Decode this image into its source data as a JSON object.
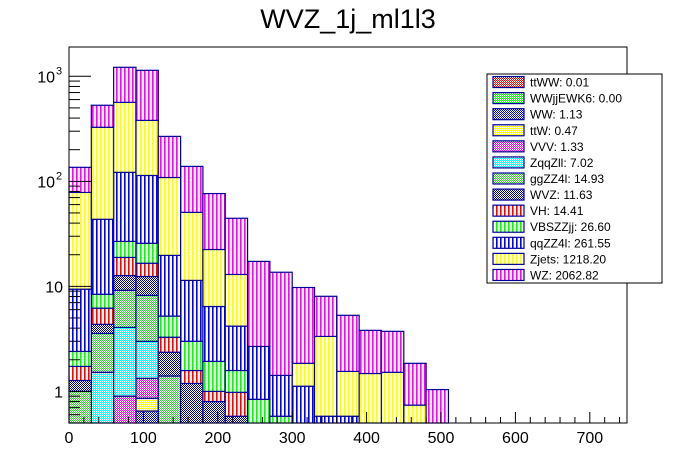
{
  "chart_data": {
    "type": "bar",
    "subtype": "stacked-histogram",
    "title": "WVZ_1j_ml1l3",
    "xlabel": "",
    "ylabel": "",
    "yscale": "log",
    "xlim": [
      0,
      750
    ],
    "ylim": [
      0.5,
      1900
    ],
    "bin_edges": [
      0,
      30,
      60,
      90,
      120,
      150,
      180,
      210,
      240,
      270,
      300,
      330,
      360,
      390,
      420,
      450,
      480,
      510
    ],
    "x_ticks": [
      "0",
      "100",
      "200",
      "300",
      "400",
      "500",
      "600",
      "700"
    ],
    "x_tick_values": [
      0,
      100,
      200,
      300,
      400,
      500,
      600,
      700
    ],
    "y_ticks": [
      {
        "value": 1,
        "label": "1",
        "sup": ""
      },
      {
        "value": 10,
        "label": "10",
        "sup": ""
      },
      {
        "value": 100,
        "label": "10",
        "sup": "2"
      },
      {
        "value": 1000,
        "label": "10",
        "sup": "3"
      }
    ],
    "legend_position": "top-right",
    "series": [
      {
        "name": "ttWW",
        "legend": "ttWW: 0.01",
        "color": "#ff0000",
        "pattern": "dots",
        "values": [
          0,
          0,
          0,
          0,
          0,
          0,
          0,
          0,
          0,
          0,
          0,
          0,
          0,
          0,
          0,
          0,
          0
        ]
      },
      {
        "name": "WWjjEWK6",
        "legend": "WWjjEWK6: 0.00",
        "color": "#00ff00",
        "pattern": "dots",
        "values": [
          0,
          0,
          0,
          0,
          0,
          0,
          0,
          0,
          0,
          0,
          0,
          0,
          0,
          0,
          0,
          0,
          0
        ]
      },
      {
        "name": "WW",
        "legend": "WW: 1.13",
        "color": "#0000ff",
        "pattern": "dots",
        "values": [
          0,
          0,
          0,
          0.65,
          0.05,
          0,
          0,
          0,
          0,
          0,
          0,
          0,
          0,
          0,
          0,
          0,
          0
        ]
      },
      {
        "name": "ttW",
        "legend": "ttW: 0.47",
        "color": "#ffff00",
        "pattern": "dots",
        "values": [
          0,
          0,
          0,
          0.21,
          0,
          0,
          0,
          0,
          0,
          0,
          0,
          0,
          0,
          0,
          0,
          0,
          0
        ]
      },
      {
        "name": "VVV",
        "legend": "VVV: 1.33",
        "color": "#ff00ff",
        "pattern": "dots",
        "values": [
          0,
          0,
          0.9,
          0.47,
          0,
          0,
          0,
          0,
          0,
          0,
          0,
          0,
          0,
          0,
          0,
          0,
          0
        ]
      },
      {
        "name": "ZqqZll",
        "legend": "ZqqZll: 7.02",
        "color": "#00ffff",
        "pattern": "dots",
        "values": [
          0,
          1.52,
          3.17,
          1.67,
          0,
          0,
          0,
          0,
          0,
          0,
          0,
          0,
          0,
          0,
          0,
          0,
          0
        ]
      },
      {
        "name": "ggZZ4l",
        "legend": "ggZZ4l: 14.93",
        "color": "#33cc33",
        "pattern": "dots",
        "values": [
          1.0,
          2.04,
          5.1,
          5.2,
          1.35,
          0,
          0,
          0,
          0,
          0,
          0,
          0,
          0,
          0,
          0,
          0,
          0
        ]
      },
      {
        "name": "WVZ",
        "legend": "WVZ: 11.63",
        "color": "#000099",
        "pattern": "dots",
        "values": [
          0.27,
          0.79,
          3.5,
          4.2,
          0.96,
          1.19,
          0.8,
          0.58,
          0,
          0,
          0,
          0,
          0,
          0,
          0,
          0,
          0
        ]
      },
      {
        "name": "VH",
        "legend": "VH: 14.41",
        "color": "#ff0000",
        "pattern": "vlines",
        "values": [
          0.46,
          1.85,
          6.2,
          4.2,
          0.92,
          0.39,
          0.2,
          0.4,
          0,
          0,
          0,
          0,
          0,
          0,
          0,
          0,
          0
        ]
      },
      {
        "name": "VBSZZjj",
        "legend": "VBSZZjj: 26.60",
        "color": "#00ff00",
        "pattern": "vlines",
        "values": [
          0.67,
          2.2,
          7.9,
          9.1,
          1.93,
          1.42,
          0.93,
          0.6,
          0.84,
          0.58,
          0,
          0,
          0,
          0,
          0,
          0,
          0
        ]
      },
      {
        "name": "qqZZ4l",
        "legend": "qqZZ4l: 261.55",
        "color": "#0000ff",
        "pattern": "vlines",
        "values": [
          7.0,
          35.1,
          95,
          88,
          14.5,
          8.4,
          4.5,
          2.6,
          1.84,
          0.84,
          1.12,
          0.58,
          0.58,
          0,
          0,
          0,
          0
        ]
      },
      {
        "name": "Zjets",
        "legend": "Zjets: 1218.20",
        "color": "#ffff00",
        "pattern": "vlines",
        "values": [
          69,
          283.5,
          443,
          267,
          89,
          39.3,
          16,
          8.8,
          0,
          0,
          0.73,
          2.76,
          0.97,
          1.48,
          1.52,
          0.74,
          0
        ]
      },
      {
        "name": "WZ",
        "legend": "WZ: 2062.82",
        "color": "#ff00ff",
        "pattern": "vlines",
        "values": [
          57.5,
          203,
          653,
          759,
          159,
          88,
          54,
          31.5,
          14.6,
          12.2,
          7.9,
          4.7,
          3.75,
          2.33,
          2.21,
          1.11,
          1.04
        ]
      }
    ],
    "outline_color": "#000099"
  }
}
